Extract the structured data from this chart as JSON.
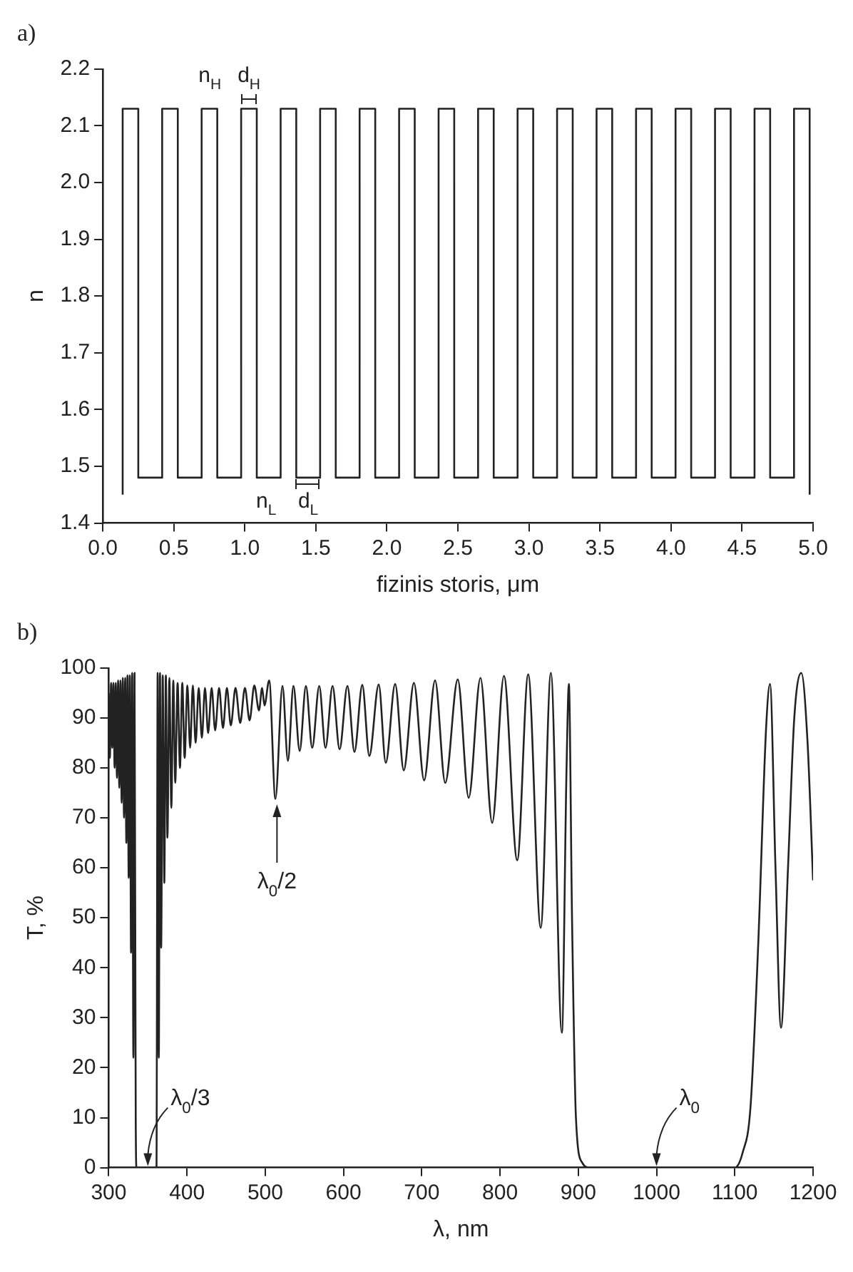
{
  "chart_data": [
    {
      "type": "step",
      "title": "a)",
      "xlabel": "fizinis storis, μm",
      "ylabel": "n",
      "color": "#222222",
      "x": [
        0.14,
        0.14,
        0.25,
        0.418,
        0.528,
        0.696,
        0.806,
        0.974,
        1.084,
        1.252,
        1.362,
        1.53,
        1.64,
        1.808,
        1.918,
        2.086,
        2.196,
        2.364,
        2.474,
        2.642,
        2.752,
        2.92,
        3.03,
        3.198,
        3.308,
        3.476,
        3.586,
        3.754,
        3.864,
        4.032,
        4.142,
        4.31,
        4.42,
        4.588,
        4.698,
        4.866,
        4.976
      ],
      "values": [
        1.45,
        2.13,
        1.48,
        2.13,
        1.48,
        2.13,
        1.48,
        2.13,
        1.48,
        2.13,
        1.48,
        2.13,
        1.48,
        2.13,
        1.48,
        2.13,
        1.48,
        2.13,
        1.48,
        2.13,
        1.48,
        2.13,
        1.48,
        2.13,
        1.48,
        2.13,
        1.48,
        2.13,
        1.48,
        2.13,
        1.48,
        2.13,
        1.48,
        2.13,
        1.48,
        2.13,
        1.45
      ],
      "xlim": [
        0,
        5
      ],
      "ylim": [
        1.4,
        2.2
      ],
      "xticks": [
        {
          "value": 0,
          "label": "0.0"
        },
        {
          "value": 0.5,
          "label": "0.5"
        },
        {
          "value": 1,
          "label": "1.0"
        },
        {
          "value": 1.5,
          "label": "1.5"
        },
        {
          "value": 2,
          "label": "2.0"
        },
        {
          "value": 2.5,
          "label": "2.5"
        },
        {
          "value": 3,
          "label": "3.0"
        },
        {
          "value": 3.5,
          "label": "3.5"
        },
        {
          "value": 4,
          "label": "4.0"
        },
        {
          "value": 4.5,
          "label": "4.5"
        },
        {
          "value": 5,
          "label": "5.0"
        }
      ],
      "yticks": [
        1.4,
        1.5,
        1.6,
        1.7,
        1.8,
        1.9,
        {
          "value": 2,
          "label": "2.0"
        },
        2.1,
        2.2
      ],
      "annotations": [
        "n$_{H}$",
        "d$_{H}$",
        "n$_{L}$",
        "d$_{L}$"
      ]
    },
    {
      "type": "line",
      "title": "b)",
      "xlabel": "λ, nm",
      "ylabel": "T, %",
      "color": "#222222",
      "x": [
        300,
        301.5,
        303,
        304.5,
        306,
        307.5,
        309,
        310.5,
        312,
        313.5,
        315,
        316.5,
        318,
        319.5,
        321,
        322.5,
        324,
        325.5,
        327,
        328.5,
        330,
        331.5,
        333,
        334.5,
        335.5,
        361,
        362.5,
        364,
        365.5,
        367,
        369,
        371,
        373,
        375,
        377.5,
        380,
        382.5,
        385,
        388,
        391,
        394,
        397,
        400.5,
        404,
        407.5,
        411,
        415,
        419,
        423,
        427,
        431.5,
        436,
        441,
        446,
        451,
        456,
        462,
        468,
        474,
        480,
        486,
        492,
        496,
        499,
        505,
        513,
        522,
        529,
        536,
        544,
        552,
        560,
        569,
        577,
        586,
        595,
        605,
        614,
        624,
        633,
        645,
        654,
        666,
        677,
        690,
        703,
        717,
        730,
        746,
        760,
        775,
        790,
        805,
        822,
        836,
        852,
        865,
        879,
        885,
        888,
        892,
        897,
        905,
        915,
        1100,
        1110,
        1120,
        1130,
        1140,
        1145,
        1152,
        1159,
        1168,
        1176,
        1185,
        1193,
        1200
      ],
      "values": [
        95,
        82,
        97,
        84,
        97,
        80,
        97,
        78,
        97.5,
        76,
        97.5,
        73,
        98,
        70,
        98,
        65,
        98.5,
        58,
        98.5,
        43,
        99,
        22,
        99,
        10,
        0,
        0,
        99,
        22,
        99,
        44,
        98.5,
        57,
        98.5,
        66,
        98,
        72,
        97.5,
        77,
        97,
        80,
        97,
        82,
        96.5,
        84,
        96.5,
        85,
        96,
        86,
        96,
        87,
        96,
        87.5,
        96,
        88,
        96,
        88.5,
        96,
        89,
        96,
        89.5,
        96.5,
        91.5,
        96,
        92.5,
        97.5,
        73.8,
        96.4,
        81.4,
        96.4,
        83.4,
        96.4,
        84,
        96.4,
        84,
        96.4,
        83.7,
        96.4,
        83.2,
        96.6,
        82.4,
        96.7,
        81,
        96.8,
        79.5,
        97,
        77.5,
        97.5,
        77,
        97.7,
        74,
        98,
        69,
        98.4,
        61.5,
        98.7,
        48,
        99,
        27,
        80,
        96.8,
        50,
        10,
        1,
        0,
        0,
        3,
        12,
        45,
        88,
        96.8,
        60,
        28,
        60,
        90,
        99,
        85,
        57.5
      ],
      "xlim": [
        300,
        1200
      ],
      "ylim": [
        0,
        100
      ],
      "xticks": [
        300,
        400,
        500,
        600,
        700,
        800,
        900,
        1000,
        1100,
        1200
      ],
      "yticks": [
        0,
        10,
        20,
        30,
        40,
        50,
        60,
        70,
        80,
        90,
        100
      ],
      "annotations": [
        {
          "text": "λ$_{0}$/2",
          "x": 515,
          "y": 73
        },
        {
          "text": "λ$_{0}$/3",
          "x": 350,
          "y": 0
        },
        {
          "text": "λ$_{0}$",
          "x": 1000,
          "y": 0
        }
      ]
    }
  ]
}
